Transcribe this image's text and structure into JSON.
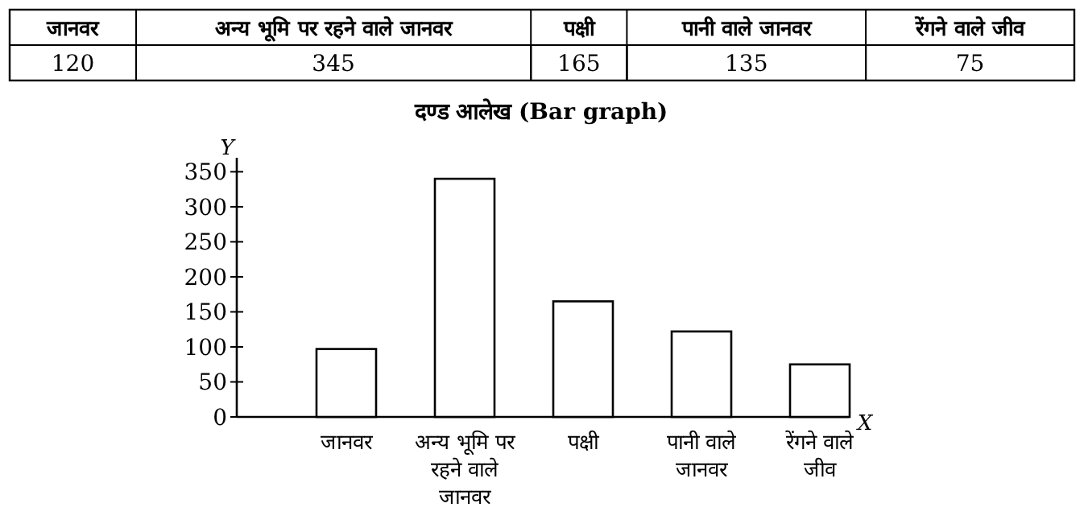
{
  "chart_data": [
    {
      "type": "other",
      "categories": [
        "जानवर",
        "अन्य भूमि पर रहने वाले जानवर",
        "पक्षी",
        "पानी वाले जानवर",
        "रेंगने वाले जीव"
      ],
      "values": [
        120,
        345,
        165,
        135,
        75
      ],
      "data_labels": true
    },
    {
      "type": "bar",
      "title": "दण्ड आलेख (Bar graph)",
      "xlabel": "X",
      "ylabel": "Y",
      "categories": [
        "जानवर",
        "अन्य भूमि पर रहने वाले जानवर",
        "पक्षी",
        "पानी वाले जानवर",
        "रेंगने वाले जीव"
      ],
      "values": [
        97,
        340,
        165,
        122,
        75
      ],
      "color": "#ffffff",
      "ylim": [
        0,
        370
      ],
      "yticks": [
        0,
        50,
        100,
        150,
        200,
        250,
        300,
        350
      ]
    }
  ]
}
